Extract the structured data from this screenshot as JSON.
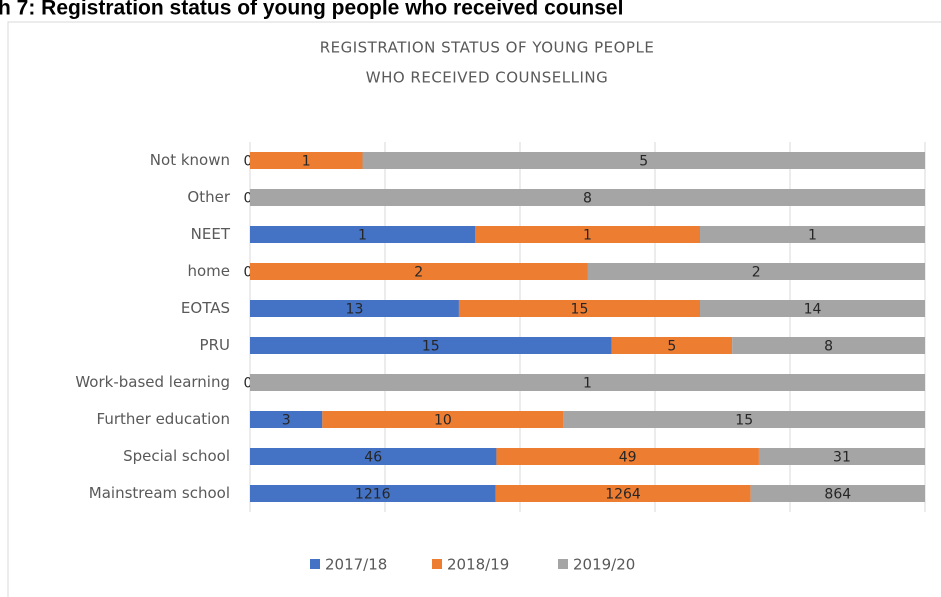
{
  "chart_data": {
    "type": "stacked-bar-100",
    "heading": "h 7: Registration status of young people who received counsel",
    "title": [
      "REGISTRATION  STATUS OF YOUNG PEOPLE",
      "WHO RECEIVED COUNSELLING"
    ],
    "categories": [
      "Not known",
      "Other",
      "NEET",
      "home",
      "EOTAS",
      "PRU",
      "Work-based learning",
      "Further education",
      "Special school",
      "Mainstream school"
    ],
    "series": [
      {
        "name": "2017/18",
        "color": "#4472c4",
        "values": [
          0,
          0,
          1,
          0,
          13,
          15,
          0,
          3,
          46,
          1216
        ]
      },
      {
        "name": "2018/19",
        "color": "#ed7d31",
        "values": [
          1,
          null,
          1,
          2,
          15,
          5,
          null,
          10,
          49,
          1264
        ]
      },
      {
        "name": "2019/20",
        "color": "#a5a5a5",
        "values": [
          5,
          8,
          1,
          2,
          14,
          8,
          1,
          15,
          31,
          864
        ]
      }
    ],
    "xlim": [
      0,
      100
    ],
    "xticks": [
      0,
      20,
      40,
      60,
      80,
      100
    ],
    "grid": true,
    "legend": "bottom"
  }
}
